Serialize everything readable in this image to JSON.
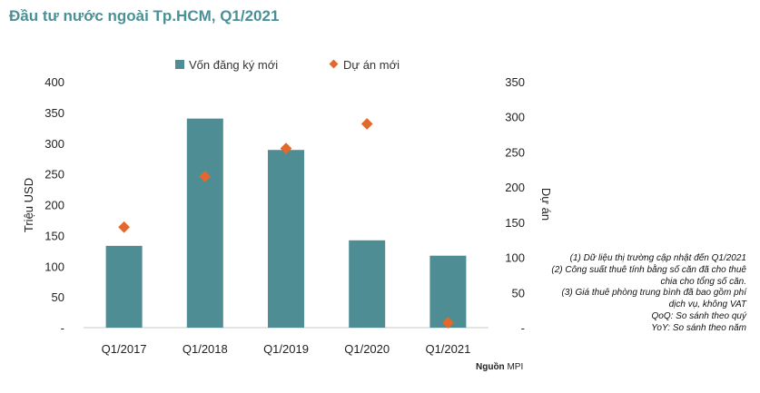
{
  "title": "Đầu tư nước ngoài Tp.HCM, Q1/2021",
  "chart_data": {
    "type": "bar",
    "categories": [
      "Q1/2017",
      "Q1/2018",
      "Q1/2019",
      "Q1/2020",
      "Q1/2021"
    ],
    "series": [
      {
        "name": "Vốn đăng ký mới",
        "type": "bar",
        "axis": "left",
        "color": "#4f8d95",
        "values": [
          133,
          340,
          289,
          142,
          117
        ]
      },
      {
        "name": "Dự án mới",
        "type": "scatter",
        "axis": "right",
        "color": "#e2692b",
        "values": [
          143,
          215,
          255,
          290,
          7
        ]
      }
    ],
    "ylabel": "Triệu USD",
    "ylabel_right": "Dự án",
    "ylim": [
      0,
      400
    ],
    "ylim_right": [
      0,
      350
    ],
    "yticks": [
      "-",
      "50",
      "100",
      "150",
      "200",
      "250",
      "300",
      "350",
      "400"
    ],
    "yticks_right": [
      "-",
      "50",
      "100",
      "150",
      "200",
      "250",
      "300",
      "350"
    ],
    "legend_position": "top",
    "grid": false
  },
  "notes": [
    "(1)  Dữ liệu thị trường cập nhật đến Q1/2021",
    "(2)  Công suất thuê tính bằng số căn đã cho thuê chia cho tổng số căn.",
    "(3)  Giá thuê phòng trung bình đã bao gồm phí dịch vụ, không VAT",
    "QoQ: So sánh theo quý",
    "YoY: So sánh theo năm"
  ],
  "source": {
    "label": "Nguồn",
    "value": "MPI"
  }
}
